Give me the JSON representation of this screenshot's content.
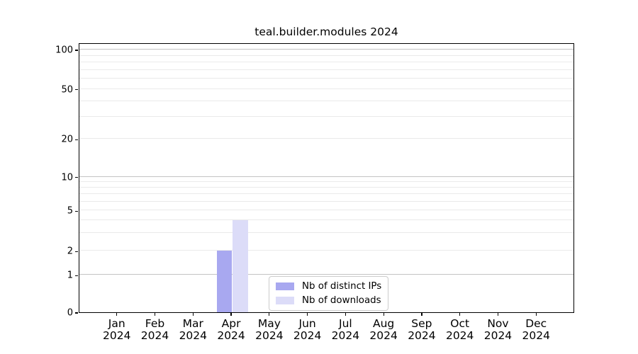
{
  "chart_data": {
    "type": "bar",
    "title": "teal.builder.modules 2024",
    "xlabel": "",
    "ylabel": "",
    "yscale": "symlog",
    "grid": "horizontal",
    "legend_position": "lower center",
    "categories": [
      {
        "month": "Jan",
        "year": "2024"
      },
      {
        "month": "Feb",
        "year": "2024"
      },
      {
        "month": "Mar",
        "year": "2024"
      },
      {
        "month": "Apr",
        "year": "2024"
      },
      {
        "month": "May",
        "year": "2024"
      },
      {
        "month": "Jun",
        "year": "2024"
      },
      {
        "month": "Jul",
        "year": "2024"
      },
      {
        "month": "Aug",
        "year": "2024"
      },
      {
        "month": "Sep",
        "year": "2024"
      },
      {
        "month": "Oct",
        "year": "2024"
      },
      {
        "month": "Nov",
        "year": "2024"
      },
      {
        "month": "Dec",
        "year": "2024"
      }
    ],
    "series": [
      {
        "name": "Nb of distinct IPs",
        "color": "#a8a8f0",
        "values": [
          0,
          0,
          0,
          2,
          0,
          0,
          0,
          0,
          0,
          0,
          0,
          0
        ]
      },
      {
        "name": "Nb of downloads",
        "color": "#dcdcf8",
        "values": [
          0,
          0,
          0,
          4,
          0,
          0,
          0,
          0,
          0,
          0,
          0,
          0
        ]
      }
    ],
    "ytick_labels": [
      0,
      1,
      2,
      5,
      10,
      20,
      50,
      100
    ],
    "major_ticks": [
      1,
      10,
      100
    ],
    "ylim": [
      0,
      115
    ],
    "scale_map": [
      {
        "v": 0,
        "f": 0.0
      },
      {
        "v": 1,
        "f": 0.1383
      },
      {
        "v": 2,
        "f": 0.2276
      },
      {
        "v": 3,
        "f": 0.2942
      },
      {
        "v": 4,
        "f": 0.3409
      },
      {
        "v": 5,
        "f": 0.3772
      },
      {
        "v": 6,
        "f": 0.41
      },
      {
        "v": 7,
        "f": 0.4378
      },
      {
        "v": 8,
        "f": 0.4619
      },
      {
        "v": 9,
        "f": 0.4829
      },
      {
        "v": 10,
        "f": 0.5021
      },
      {
        "v": 20,
        "f": 0.6422
      },
      {
        "v": 30,
        "f": 0.7241
      },
      {
        "v": 40,
        "f": 0.7824
      },
      {
        "v": 50,
        "f": 0.8276
      },
      {
        "v": 60,
        "f": 0.8661
      },
      {
        "v": 70,
        "f": 0.8984
      },
      {
        "v": 80,
        "f": 0.9268
      },
      {
        "v": 90,
        "f": 0.9514
      },
      {
        "v": 100,
        "f": 0.9738
      }
    ],
    "colors": {
      "major_grid": "#c3c3c3",
      "minor_grid": "#eaeaea",
      "spine": "#000000",
      "text": "#000000",
      "background": "#ffffff"
    }
  }
}
